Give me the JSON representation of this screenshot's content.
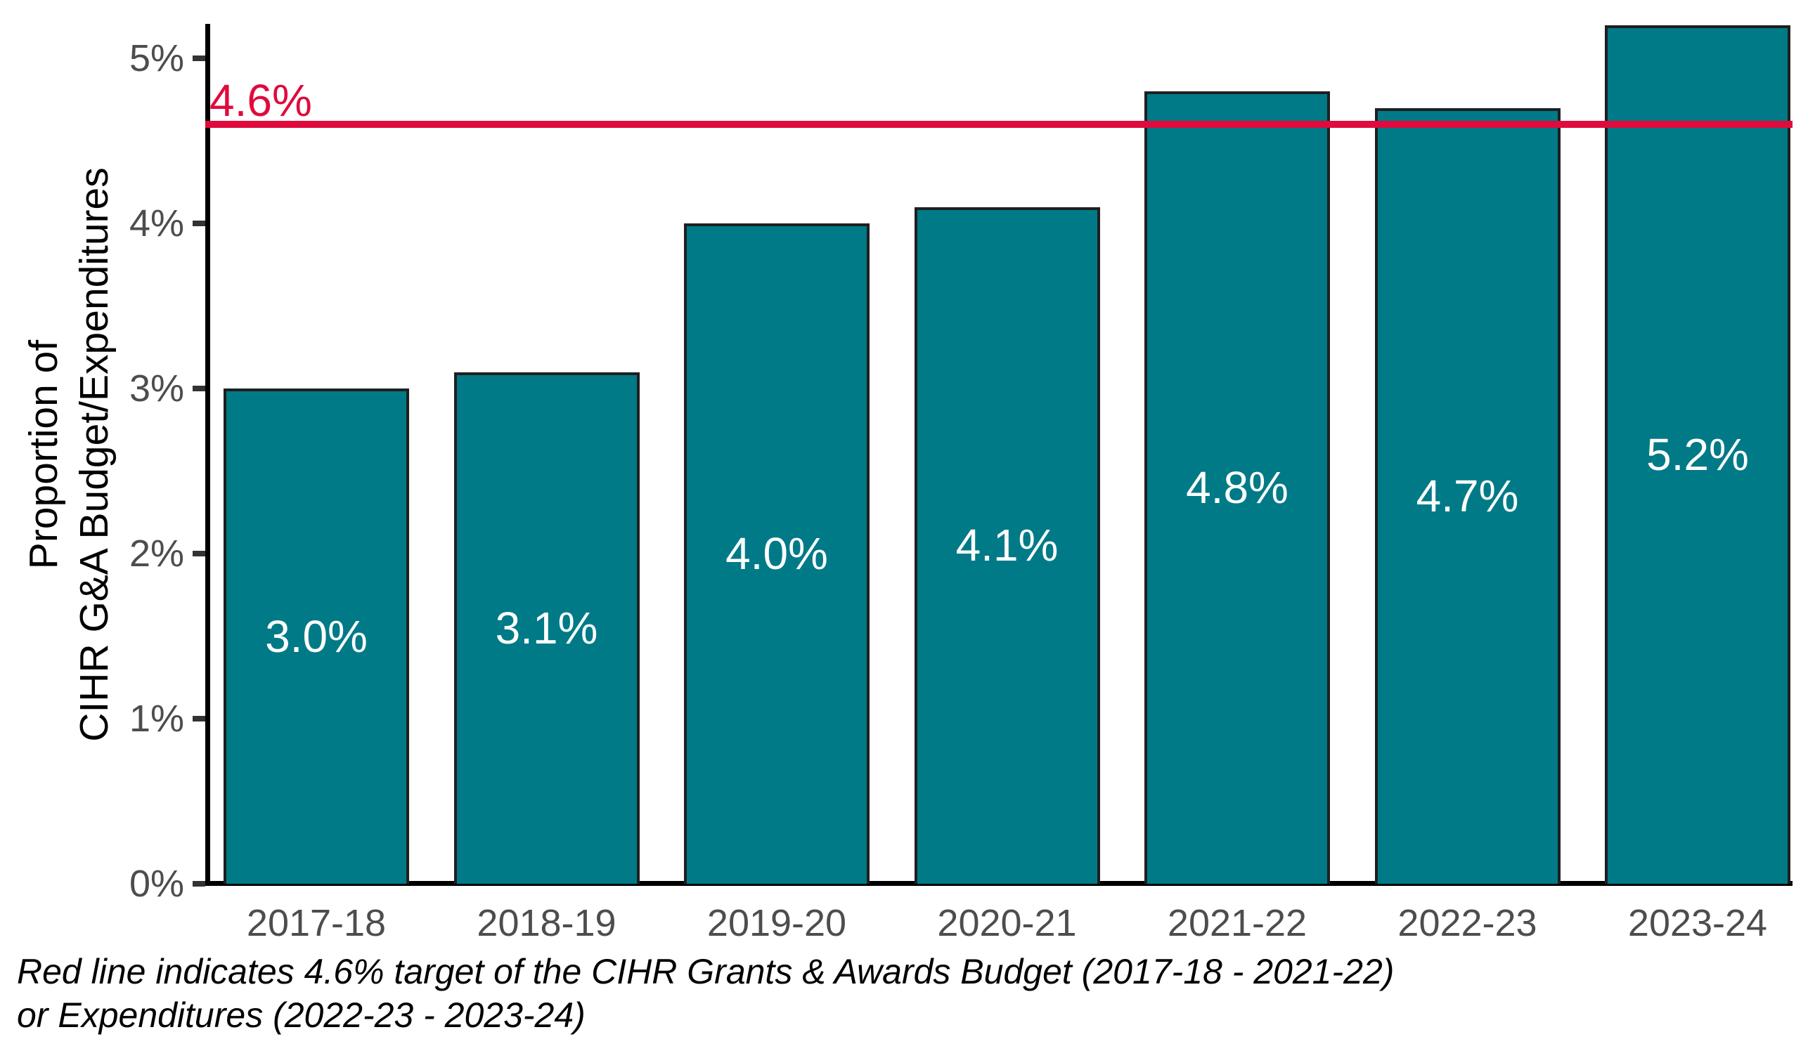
{
  "chart_data": {
    "type": "bar",
    "title": "",
    "categories": [
      "2017-18",
      "2018-19",
      "2019-20",
      "2020-21",
      "2021-22",
      "2022-23",
      "2023-24"
    ],
    "values": [
      3.0,
      3.1,
      4.0,
      4.1,
      4.8,
      4.7,
      5.2
    ],
    "bar_labels": [
      "3.0%",
      "3.1%",
      "4.0%",
      "4.1%",
      "4.8%",
      "4.7%",
      "5.2%"
    ],
    "xlabel": "",
    "ylabel": "Proportion of\nCIHR G&A Budget/Expenditures",
    "y_ticks": [
      "0%",
      "1%",
      "2%",
      "3%",
      "4%",
      "5%"
    ],
    "y_tick_values": [
      0,
      1,
      2,
      3,
      4,
      5
    ],
    "ylim": [
      0,
      5.25
    ],
    "grid": false,
    "legend": "none",
    "reference_line": {
      "value": 4.6,
      "label": "4.6%"
    },
    "caption_line1": "Red line indicates 4.6% target of the CIHR Grants & Awards Budget (2017-18 - 2021-22)",
    "caption_line2": "or Expenditures (2022-23 - 2023-24)"
  },
  "colors": {
    "bar_fill": "#007a87",
    "bar_border": "#1f1f1f",
    "reference_line": "#e00a3c",
    "axis": "#000000",
    "tick_label": "#4d4d4d",
    "bar_label": "#ffffff"
  }
}
